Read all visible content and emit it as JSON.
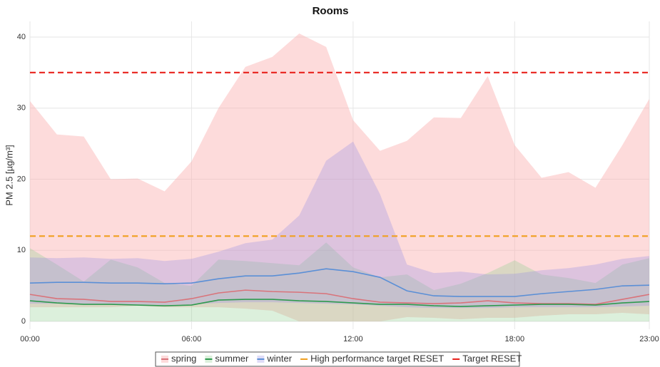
{
  "chart_data": {
    "type": "band-line",
    "title": "Rooms",
    "y_label": "PM 2.5 [µg/m³]",
    "x": [
      0,
      1,
      2,
      3,
      4,
      5,
      6,
      7,
      8,
      9,
      10,
      11,
      12,
      13,
      14,
      15,
      16,
      17,
      18,
      19,
      20,
      21,
      22,
      23
    ],
    "xlim": [
      0,
      23
    ],
    "xticks": [
      {
        "value": 0,
        "label": "00:00"
      },
      {
        "value": 6,
        "label": "06:00"
      },
      {
        "value": 12,
        "label": "12:00"
      },
      {
        "value": 18,
        "label": "18:00"
      },
      {
        "value": 23,
        "label": "23:00"
      }
    ],
    "ylim": [
      -1.1,
      42.2
    ],
    "yticks": [
      0,
      10,
      20,
      30,
      40
    ],
    "grid": true,
    "series": [
      {
        "name": "spring",
        "color": "#d9737a",
        "band_color": "rgba(250,175,175,0.45)",
        "values": [
          3.8,
          3.2,
          3.1,
          2.8,
          2.8,
          2.7,
          3.2,
          4.0,
          4.4,
          4.2,
          4.1,
          3.9,
          3.2,
          2.7,
          2.6,
          2.5,
          2.6,
          2.9,
          2.6,
          2.5,
          2.5,
          2.4,
          3.1,
          3.8
        ],
        "upper": [
          31,
          26.3,
          26,
          20,
          20.1,
          18.3,
          22.5,
          30,
          35.8,
          37.2,
          40.5,
          38.6,
          28.3,
          24,
          25.4,
          28.7,
          28.6,
          34.5,
          24.8,
          20.2,
          21,
          18.8,
          24.8,
          31.3
        ],
        "lower": [
          2,
          2,
          2,
          2,
          2.2,
          2,
          2,
          2,
          1.8,
          1.5,
          0,
          0,
          0,
          0,
          0.6,
          0.5,
          0.3,
          0.5,
          0.5,
          0.8,
          1,
          1,
          1.2,
          1
        ]
      },
      {
        "name": "summer",
        "color": "#2e9a4e",
        "band_color": "rgba(140,205,140,0.3)",
        "values": [
          2.9,
          2.6,
          2.4,
          2.4,
          2.3,
          2.2,
          2.3,
          3.0,
          3.1,
          3.1,
          2.9,
          2.8,
          2.6,
          2.4,
          2.4,
          2.2,
          2.1,
          2.2,
          2.3,
          2.4,
          2.4,
          2.3,
          2.6,
          2.8
        ],
        "upper": [
          10.3,
          8,
          5.6,
          8.7,
          7.6,
          5.4,
          5,
          8.7,
          8.5,
          8.2,
          7.9,
          11.1,
          7.6,
          6.2,
          6.6,
          4.4,
          5.3,
          6.8,
          8.6,
          6.6,
          6.1,
          5.4,
          8,
          8.9
        ],
        "lower": [
          0,
          0,
          0,
          0,
          0,
          0,
          0,
          0,
          0,
          0,
          0,
          0,
          0,
          0,
          0,
          0,
          0,
          0,
          0,
          0,
          0,
          0,
          0,
          0
        ]
      },
      {
        "name": "winter",
        "color": "#5b8fd6",
        "band_color": "rgba(150,140,230,0.3)",
        "values": [
          5.4,
          5.5,
          5.5,
          5.4,
          5.4,
          5.3,
          5.4,
          6.0,
          6.4,
          6.4,
          6.8,
          7.4,
          7.0,
          6.2,
          4.3,
          3.6,
          3.5,
          3.5,
          3.5,
          3.9,
          4.2,
          4.5,
          5.0,
          5.1
        ],
        "upper": [
          9,
          8.9,
          9,
          8.8,
          8.9,
          8.5,
          8.8,
          9.8,
          11,
          11.5,
          14.9,
          22.6,
          25.3,
          17.9,
          8,
          6.8,
          7,
          6.6,
          6.7,
          7.2,
          7.5,
          8,
          8.8,
          9.2
        ],
        "lower": [
          2.5,
          2.5,
          2.4,
          2.4,
          2.4,
          2.3,
          2.4,
          2.6,
          2.7,
          2.7,
          2.6,
          2.5,
          2.4,
          2.2,
          2,
          1.9,
          1.9,
          1.9,
          2,
          2,
          2,
          2,
          2.1,
          2.2
        ]
      }
    ],
    "hlines": [
      {
        "name": "High performance target RESET",
        "value": 12,
        "color": "#f0a020"
      },
      {
        "name": "Target RESET",
        "value": 35,
        "color": "#e8221c"
      }
    ]
  }
}
